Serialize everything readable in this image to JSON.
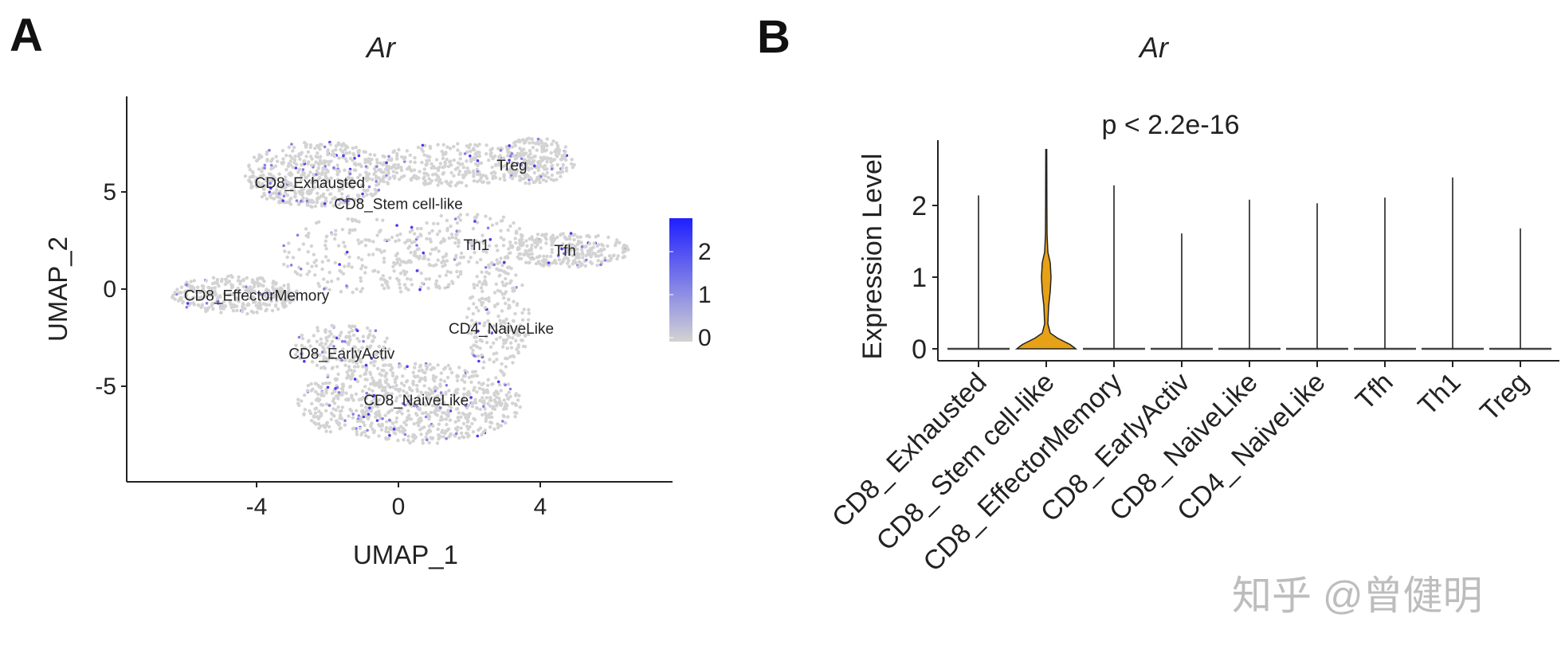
{
  "panels": {
    "a_letter": "A",
    "b_letter": "B"
  },
  "watermark": "知乎 @曾健明",
  "chart_data": [
    {
      "type": "scatter",
      "title": "Ar",
      "xlabel": "UMAP_1",
      "ylabel": "UMAP_2",
      "xticks": [
        "-4",
        "0",
        "4"
      ],
      "yticks": [
        "5",
        "0",
        "-5"
      ],
      "xtick_values": [
        -4,
        0,
        4
      ],
      "ytick_values": [
        5,
        0,
        -5
      ],
      "xlim": [
        -7.2,
        8.2
      ],
      "ylim": [
        -9.8,
        9.3
      ],
      "color_scale": {
        "low": "#d3d3d3",
        "high": "#0000ff",
        "ticks": [
          "2",
          "1",
          "0"
        ],
        "tick_values": [
          2,
          1,
          0
        ],
        "max": 2.8
      },
      "cluster_labels": [
        {
          "text": "CD8_Exhausted",
          "x": -2.5,
          "y": 5.5
        },
        {
          "text": "CD8_Stem cell-like",
          "x": 0.0,
          "y": 4.4
        },
        {
          "text": "Treg",
          "x": 3.2,
          "y": 6.4
        },
        {
          "text": "Th1",
          "x": 2.2,
          "y": 2.3
        },
        {
          "text": "Tfh",
          "x": 4.7,
          "y": 2.0
        },
        {
          "text": "CD8_EffectorMemory",
          "x": -4.0,
          "y": -0.3
        },
        {
          "text": "CD4_NaiveLike",
          "x": 2.9,
          "y": -2.0
        },
        {
          "text": "CD8_EarlyActiv",
          "x": -1.6,
          "y": -3.3
        },
        {
          "text": "CD8_NaiveLike",
          "x": 0.5,
          "y": -5.7
        }
      ]
    },
    {
      "type": "violin",
      "title": "Ar",
      "annotation": "p < 2.2e-16",
      "ylabel": "Expression Level",
      "yticks": [
        "2",
        "1",
        "0"
      ],
      "ytick_values": [
        2,
        1,
        0
      ],
      "ylim": [
        -0.17,
        2.9
      ],
      "categories": [
        "CD8_ Exhausted",
        "CD8_ Stem cell-like",
        "CD8_ EffectorMemory",
        "CD8_ EarlyActiv",
        "CD8_ NaiveLike",
        "CD4_ NaiveLike",
        "Tfh",
        "Th1",
        "Treg"
      ],
      "max_values": [
        2.14,
        2.78,
        2.28,
        1.61,
        2.08,
        2.03,
        2.11,
        2.39,
        1.68
      ],
      "highlight": {
        "category": "CD8_ Stem cell-like",
        "color": "#e6a117"
      }
    }
  ]
}
